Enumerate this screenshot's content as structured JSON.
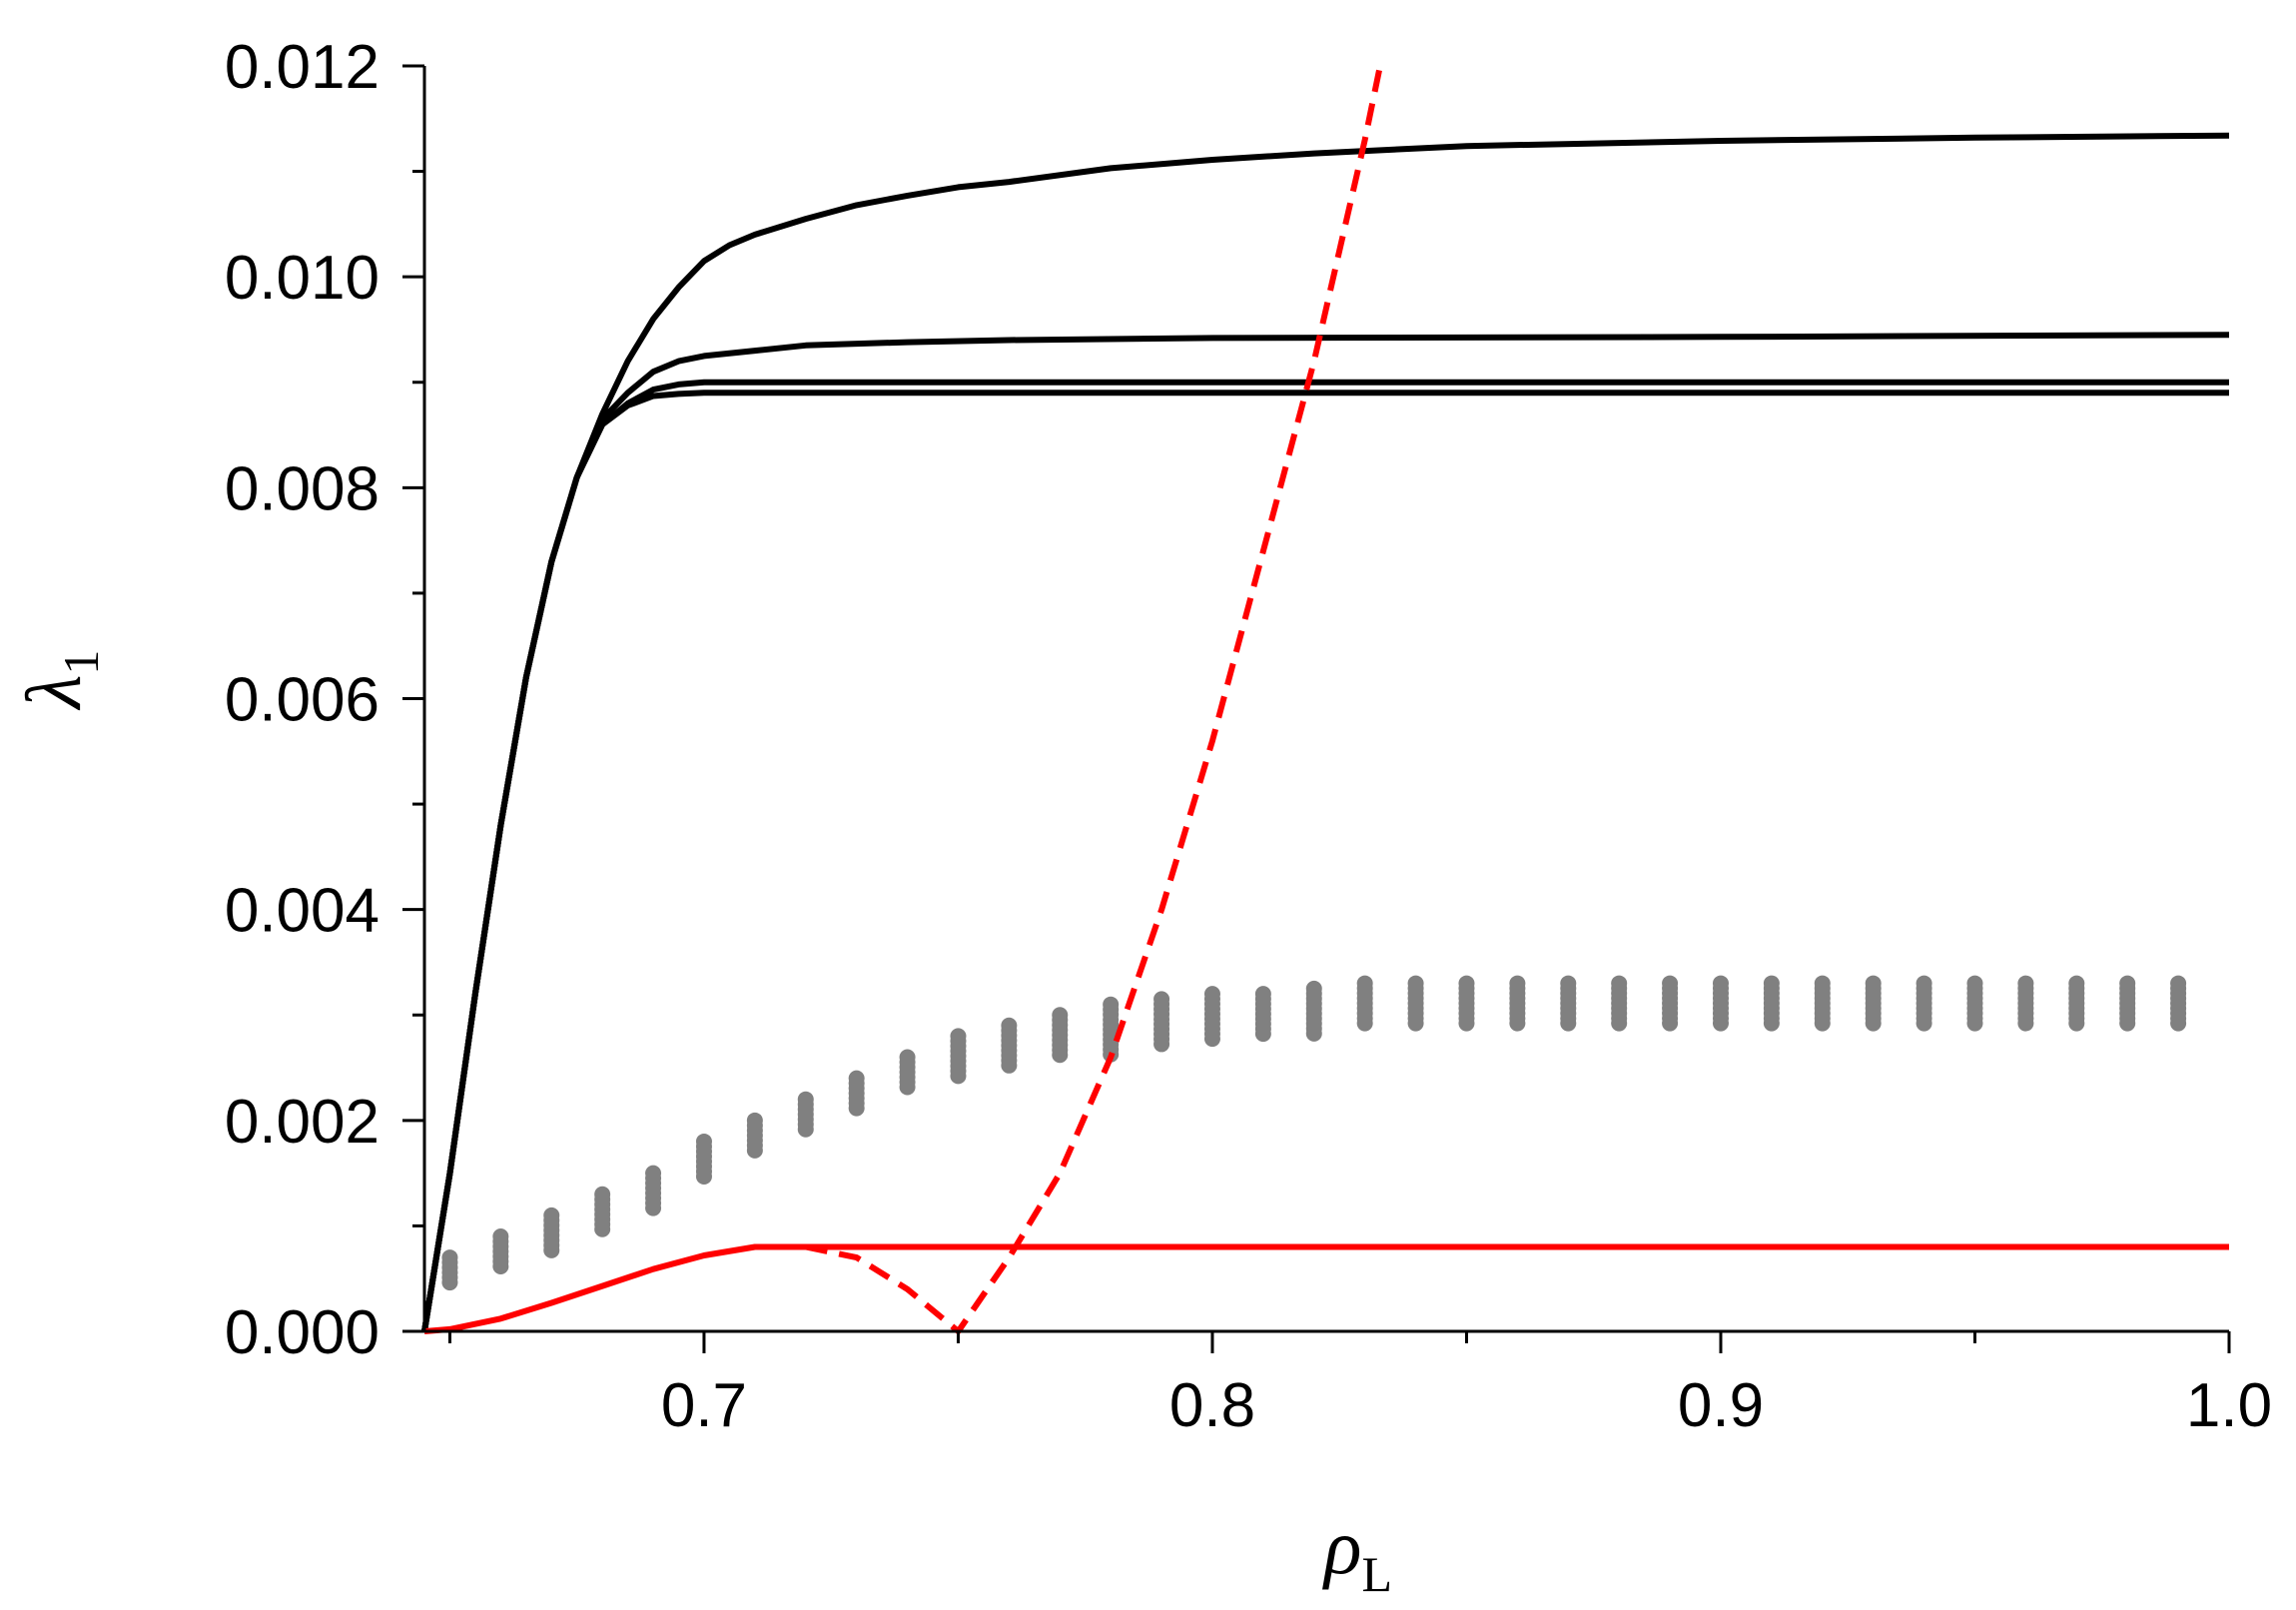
{
  "chart_data": {
    "type": "line",
    "xlabel": "ρ",
    "xlabel_sub": "L",
    "ylabel": "λ",
    "ylabel_sub": "1",
    "xlim": [
      0.645,
      1.0
    ],
    "ylim": [
      0.0,
      0.012
    ],
    "x_ticks": [
      "0.7",
      "0.8",
      "0.9",
      "1.0"
    ],
    "x_tick_values": [
      0.7,
      0.8,
      0.9,
      1.0
    ],
    "x_minor_tick_values": [
      0.65,
      0.75,
      0.85,
      0.95
    ],
    "y_ticks": [
      "0.000",
      "0.002",
      "0.004",
      "0.006",
      "0.008",
      "0.010",
      "0.012"
    ],
    "y_tick_values": [
      0.0,
      0.002,
      0.004,
      0.006,
      0.008,
      0.01,
      0.012
    ],
    "y_minor_tick_values": [
      0.001,
      0.003,
      0.005,
      0.007,
      0.009,
      0.011
    ],
    "grid": false,
    "legend": "none",
    "colors": {
      "black": "#000000",
      "red": "#ff0000",
      "gray": "#808080"
    },
    "series": [
      {
        "style": "solid",
        "color": "#000000",
        "x": [
          0.645,
          0.65,
          0.655,
          0.66,
          0.665,
          0.67,
          0.675,
          0.68,
          0.685,
          0.69,
          0.695,
          0.7,
          0.705,
          0.71,
          0.72,
          0.73,
          0.74,
          0.75,
          0.76,
          0.78,
          0.8,
          0.82,
          0.85,
          0.9,
          0.95,
          1.0
        ],
        "y": [
          0.0,
          0.0015,
          0.0032,
          0.0048,
          0.0062,
          0.0073,
          0.0081,
          0.0087,
          0.0092,
          0.0096,
          0.0099,
          0.01015,
          0.0103,
          0.0104,
          0.01055,
          0.01068,
          0.01077,
          0.01085,
          0.0109,
          0.01103,
          0.01111,
          0.01117,
          0.01124,
          0.01129,
          0.01132,
          0.01134
        ]
      },
      {
        "style": "solid",
        "color": "#000000",
        "x": [
          0.645,
          0.65,
          0.655,
          0.66,
          0.665,
          0.67,
          0.675,
          0.68,
          0.685,
          0.69,
          0.695,
          0.7,
          0.71,
          0.72,
          0.74,
          0.76,
          0.8,
          0.9,
          1.0
        ],
        "y": [
          0.0,
          0.0015,
          0.0032,
          0.0048,
          0.0062,
          0.0073,
          0.0081,
          0.00865,
          0.0089,
          0.0091,
          0.0092,
          0.00925,
          0.0093,
          0.00935,
          0.00938,
          0.0094,
          0.00942,
          0.00943,
          0.00945
        ]
      },
      {
        "style": "solid",
        "color": "#000000",
        "x": [
          0.645,
          0.65,
          0.655,
          0.66,
          0.665,
          0.67,
          0.675,
          0.68,
          0.685,
          0.69,
          0.695,
          0.7,
          0.72,
          0.8,
          0.9,
          1.0
        ],
        "y": [
          0.0,
          0.0015,
          0.0032,
          0.0048,
          0.0062,
          0.0073,
          0.0081,
          0.0086,
          0.0088,
          0.00893,
          0.00898,
          0.009,
          0.009,
          0.009,
          0.009,
          0.009
        ]
      },
      {
        "style": "solid",
        "color": "#000000",
        "x": [
          0.645,
          0.65,
          0.655,
          0.66,
          0.665,
          0.67,
          0.675,
          0.68,
          0.685,
          0.69,
          0.695,
          0.7,
          0.72,
          0.8,
          0.9,
          1.0
        ],
        "y": [
          0.0,
          0.0015,
          0.0032,
          0.0048,
          0.0062,
          0.0073,
          0.0081,
          0.0086,
          0.00878,
          0.00887,
          0.00889,
          0.0089,
          0.0089,
          0.0089,
          0.0089,
          0.0089
        ]
      },
      {
        "style": "solid",
        "color": "#ff0000",
        "x": [
          0.645,
          0.65,
          0.66,
          0.67,
          0.68,
          0.69,
          0.7,
          0.71,
          0.72,
          0.8,
          0.9,
          1.0
        ],
        "y": [
          0.0,
          2e-05,
          0.00012,
          0.00027,
          0.00043,
          0.00059,
          0.00072,
          0.0008,
          0.0008,
          0.0008,
          0.0008,
          0.0008
        ]
      },
      {
        "style": "dashed",
        "color": "#ff0000",
        "x": [
          0.72,
          0.73,
          0.74,
          0.75,
          0.755,
          0.76,
          0.77,
          0.78,
          0.79,
          0.8,
          0.81,
          0.82,
          0.83,
          0.833
        ],
        "y": [
          0.0008,
          0.0007,
          0.0004,
          0.0,
          0.00035,
          0.0007,
          0.0015,
          0.0026,
          0.004,
          0.0056,
          0.0074,
          0.0092,
          0.0113,
          0.012
        ]
      }
    ],
    "markers": {
      "style": "dots",
      "color": "#808080",
      "x": [
        0.65,
        0.66,
        0.67,
        0.68,
        0.69,
        0.7,
        0.71,
        0.72,
        0.73,
        0.74,
        0.75,
        0.76,
        0.77,
        0.78,
        0.79,
        0.8,
        0.81,
        0.82,
        0.83,
        0.84,
        0.85,
        0.86,
        0.87,
        0.88,
        0.89,
        0.9,
        0.91,
        0.92,
        0.93,
        0.94,
        0.95,
        0.96,
        0.97,
        0.98,
        0.99
      ],
      "y_low": [
        0.00045,
        0.0006,
        0.00075,
        0.00095,
        0.00115,
        0.00145,
        0.0017,
        0.0019,
        0.0021,
        0.0023,
        0.0024,
        0.0025,
        0.0026,
        0.0026,
        0.0027,
        0.00275,
        0.0028,
        0.0028,
        0.0029,
        0.0029,
        0.0029,
        0.0029,
        0.0029,
        0.0029,
        0.0029,
        0.0029,
        0.0029,
        0.0029,
        0.0029,
        0.0029,
        0.0029,
        0.0029,
        0.0029,
        0.0029,
        0.0029
      ],
      "y_high": [
        0.0007,
        0.0009,
        0.0011,
        0.0013,
        0.0015,
        0.0018,
        0.002,
        0.0022,
        0.0024,
        0.0026,
        0.0028,
        0.0029,
        0.003,
        0.0031,
        0.00315,
        0.0032,
        0.0032,
        0.00325,
        0.0033,
        0.0033,
        0.0033,
        0.0033,
        0.0033,
        0.0033,
        0.0033,
        0.0033,
        0.0033,
        0.0033,
        0.0033,
        0.0033,
        0.0033,
        0.0033,
        0.0033,
        0.0033,
        0.0033
      ]
    }
  }
}
